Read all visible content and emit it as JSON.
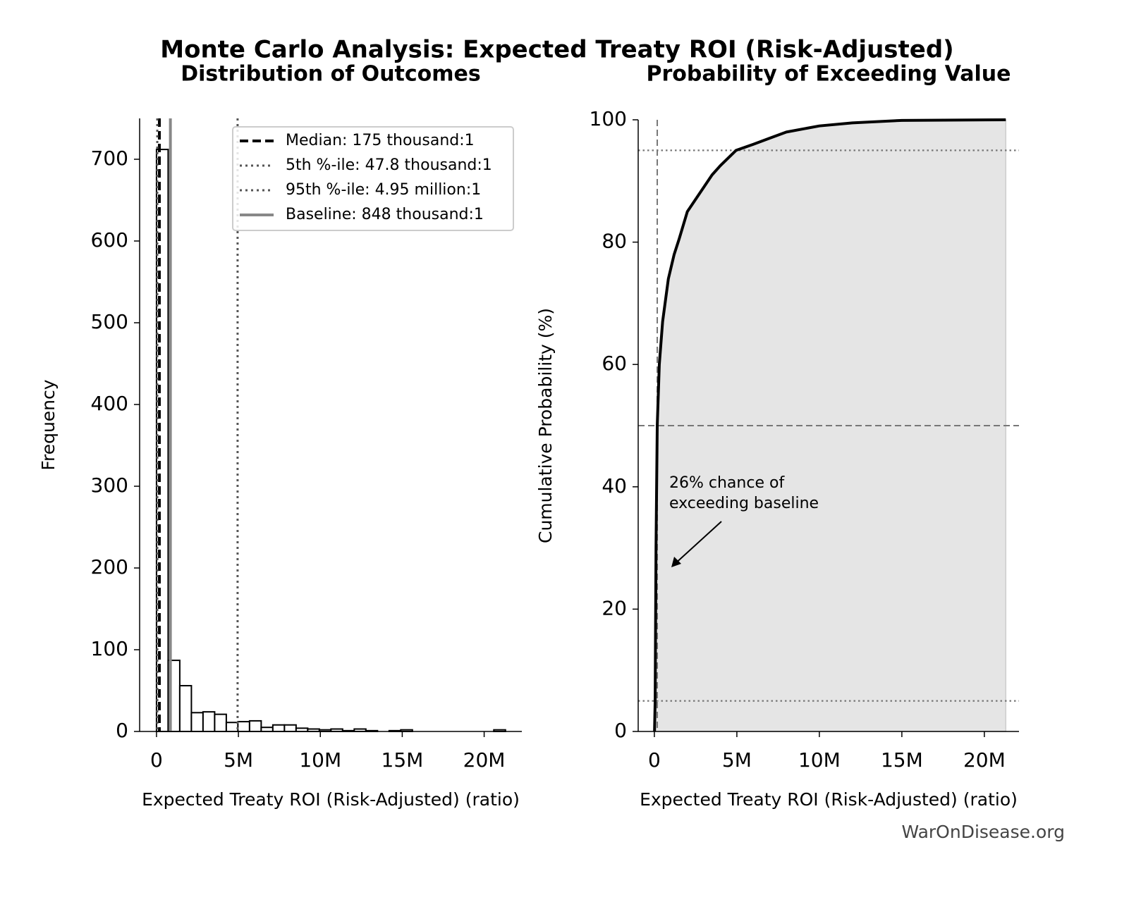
{
  "title": "Monte Carlo Analysis: Expected Treaty ROI (Risk-Adjusted)",
  "footer": "WarOnDisease.org",
  "chart_data": [
    {
      "type": "histogram",
      "title": "Distribution of Outcomes",
      "xlabel": "Expected Treaty ROI (Risk-Adjusted) (ratio)",
      "ylabel": "Frequency",
      "bins": [
        0,
        710000,
        1420000,
        2130000,
        2840000,
        3550000,
        4260000,
        4970000,
        5680000,
        6390000,
        7100000,
        7810000,
        8520000,
        9230000,
        9940000,
        10650000,
        11360000,
        12070000,
        12780000,
        13490000,
        14200000,
        14910000,
        15620000,
        16330000,
        17040000,
        17750000,
        18460000,
        19170000,
        19880000,
        20590000,
        21300000
      ],
      "values": [
        712,
        87,
        56,
        23,
        24,
        21,
        11,
        12,
        13,
        5,
        8,
        8,
        4,
        3,
        2,
        3,
        1,
        3,
        1,
        0,
        1,
        2,
        0,
        0,
        0,
        0,
        0,
        0,
        0,
        2
      ],
      "color": "#ffffff",
      "edgecolor": "#000000",
      "xlim": [
        -1030000,
        22300000
      ],
      "ylim": [
        0,
        750
      ],
      "xticks": [
        0,
        {
          "value": 5000000,
          "label": "5M"
        },
        {
          "value": 10000000,
          "label": "10M"
        },
        {
          "value": 15000000,
          "label": "15M"
        },
        {
          "value": 20000000,
          "label": "20M"
        }
      ],
      "yticks": [
        0,
        100,
        200,
        300,
        400,
        500,
        600,
        700
      ],
      "legend": "upper right",
      "vlines": [
        {
          "name": "Median: 175 thousand:1",
          "value": 175000,
          "color": "#000000",
          "style": "dashed"
        },
        {
          "name": "5th %-ile: 47.8 thousand:1",
          "value": 47800,
          "color": "#555555",
          "style": "dotted"
        },
        {
          "name": "95th %-ile: 4.95 million:1",
          "value": 4950000,
          "color": "#555555",
          "style": "dotted"
        },
        {
          "name": "Baseline: 848 thousand:1",
          "value": 848000,
          "color": "#888888",
          "style": "solid"
        }
      ]
    },
    {
      "type": "line",
      "title": "Probability of Exceeding Value",
      "xlabel": "Expected Treaty ROI (Risk-Adjusted) (ratio)",
      "ylabel": "Cumulative Probability (%)",
      "x": [
        10000,
        47800,
        100000,
        175000,
        300000,
        500000,
        848000,
        1200000,
        1500000,
        2000000,
        2500000,
        3000000,
        3500000,
        4000000,
        4950000,
        6000000,
        7000000,
        8000000,
        10000000,
        12000000,
        15000000,
        21300000
      ],
      "values": [
        0,
        5,
        30,
        50,
        60,
        67,
        74,
        78,
        80.5,
        85,
        87,
        89,
        91,
        92.5,
        95,
        96,
        97,
        98,
        99,
        99.5,
        99.9,
        100
      ],
      "color": "#000000",
      "fill_color": "#e5e5e5",
      "xlim": [
        -980000,
        22100000
      ],
      "ylim": [
        0,
        100
      ],
      "xticks": [
        0,
        {
          "value": 5000000,
          "label": "5M"
        },
        {
          "value": 10000000,
          "label": "10M"
        },
        {
          "value": 15000000,
          "label": "15M"
        },
        {
          "value": 20000000,
          "label": "20M"
        }
      ],
      "yticks": [
        0,
        20,
        40,
        60,
        80,
        100
      ],
      "vlines": [
        {
          "value": 175000,
          "color": "#777777",
          "style": "dashed"
        }
      ],
      "hlines": [
        {
          "value": 50,
          "color": "#777777",
          "style": "dashed"
        },
        {
          "value": 5,
          "color": "#777777",
          "style": "dotted"
        },
        {
          "value": 95,
          "color": "#777777",
          "style": "dotted"
        }
      ],
      "annotation": [
        "26% chance of",
        "exceeding baseline"
      ]
    }
  ]
}
